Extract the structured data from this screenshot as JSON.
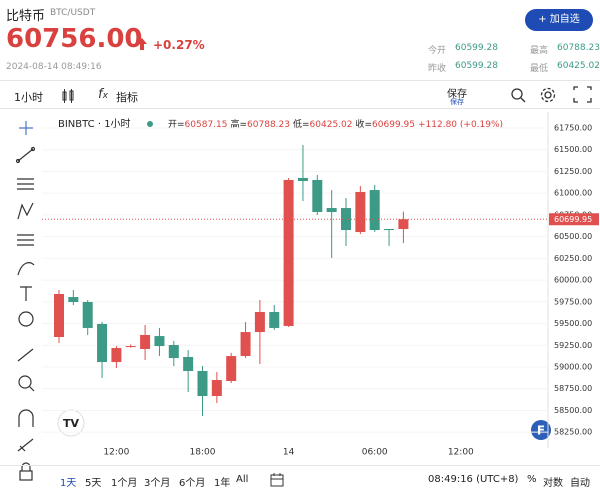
{
  "header": {
    "name": "比特币",
    "pair": "BTC/USDT",
    "price": "60756.00",
    "change": "+0.27%",
    "time": "2024-08-14 08:49:16",
    "add_button": "+ 加自选",
    "stats": [
      {
        "label": "今开",
        "value": "60599.28"
      },
      {
        "label": "最高",
        "value": "60788.23"
      },
      {
        "label": "昨收",
        "value": "60599.28"
      },
      {
        "label": "最低",
        "value": "60425.02"
      }
    ]
  },
  "toolbar": {
    "interval": "1小时",
    "indicators": "指标",
    "save": "保存",
    "save_sub": "保存"
  },
  "legend": {
    "open": "开=",
    "high": "高=",
    "low": "低=",
    "close": "收=",
    "change": "+112.80 (+0.19%)"
  },
  "ranges": [
    "1天",
    "5天",
    "1个月",
    "3个月",
    "6个月",
    "1年",
    "All"
  ],
  "footer": {
    "clock": "08:49:16 (UTC+8)",
    "percent": "%",
    "log": "对数",
    "auto": "自动"
  },
  "chart_data": {
    "type": "candlestick",
    "title": "BINBTC · 1小时",
    "categories": [
      null,
      null,
      null,
      null,
      "12:00",
      null,
      null,
      null,
      null,
      null,
      "18:00",
      null,
      null,
      null,
      null,
      null,
      "14",
      null,
      null,
      null,
      null,
      null,
      "06:00",
      null,
      null,
      null,
      null,
      null,
      "12:00"
    ],
    "open": [
      59345,
      59805,
      59748,
      59495,
      59057,
      59230,
      59207,
      59356,
      59253,
      59115,
      58954,
      58666,
      58839,
      59126,
      59402,
      59633,
      59472,
      61175,
      61152,
      60829,
      60829,
      60553,
      61036,
      60588,
      60587.15,
      null,
      null,
      null,
      null
    ],
    "high": [
      59886,
      59886,
      59771,
      59518,
      59241,
      59260,
      59483,
      59449,
      59299,
      59195,
      59011,
      58942,
      59161,
      59518,
      59771,
      59713,
      61175,
      61554,
      61209,
      61036,
      60944,
      61083,
      61094,
      60588,
      60788.23,
      null,
      null,
      null,
      null
    ],
    "low": [
      59276,
      59713,
      59368,
      58873,
      58988,
      59220,
      59080,
      59126,
      59011,
      58712,
      58436,
      58585,
      58816,
      59103,
      59034,
      59426,
      59460,
      60910,
      60749,
      60254,
      60392,
      60530,
      60553,
      60392,
      60425.02,
      null,
      null,
      null,
      null
    ],
    "close": [
      59840,
      59748,
      59449,
      59057,
      59218,
      59241,
      59368,
      59241,
      59103,
      58954,
      58666,
      58850,
      59126,
      59402,
      59633,
      59449,
      61152,
      61140,
      60783,
      60783,
      60576,
      61014,
      60576,
      60576,
      60699.95,
      null,
      null,
      null,
      null
    ],
    "up_color": "#e0504f",
    "down_color": "#3d9a86",
    "grid": true,
    "ylim": [
      58160,
      61934
    ],
    "yticks": [
      {
        "value": 61750,
        "label": "61750.00"
      },
      {
        "value": 61500,
        "label": "61500.00"
      },
      {
        "value": 61250,
        "label": "61250.00"
      },
      {
        "value": 61000,
        "label": "61000.00"
      },
      {
        "value": 60750,
        "label": "60750.00"
      },
      {
        "value": 60500,
        "label": "60500.00"
      },
      {
        "value": 60250,
        "label": "60250.00"
      },
      {
        "value": 60000,
        "label": "60000.00"
      },
      {
        "value": 59750,
        "label": "59750.00"
      },
      {
        "value": 59500,
        "label": "59500.00"
      },
      {
        "value": 59250,
        "label": "59250.00"
      },
      {
        "value": 59000,
        "label": "59000.00"
      },
      {
        "value": 58750,
        "label": "58750.00"
      },
      {
        "value": 58500,
        "label": "58500.00"
      },
      {
        "value": 58250,
        "label": "58250.00"
      }
    ]
  }
}
